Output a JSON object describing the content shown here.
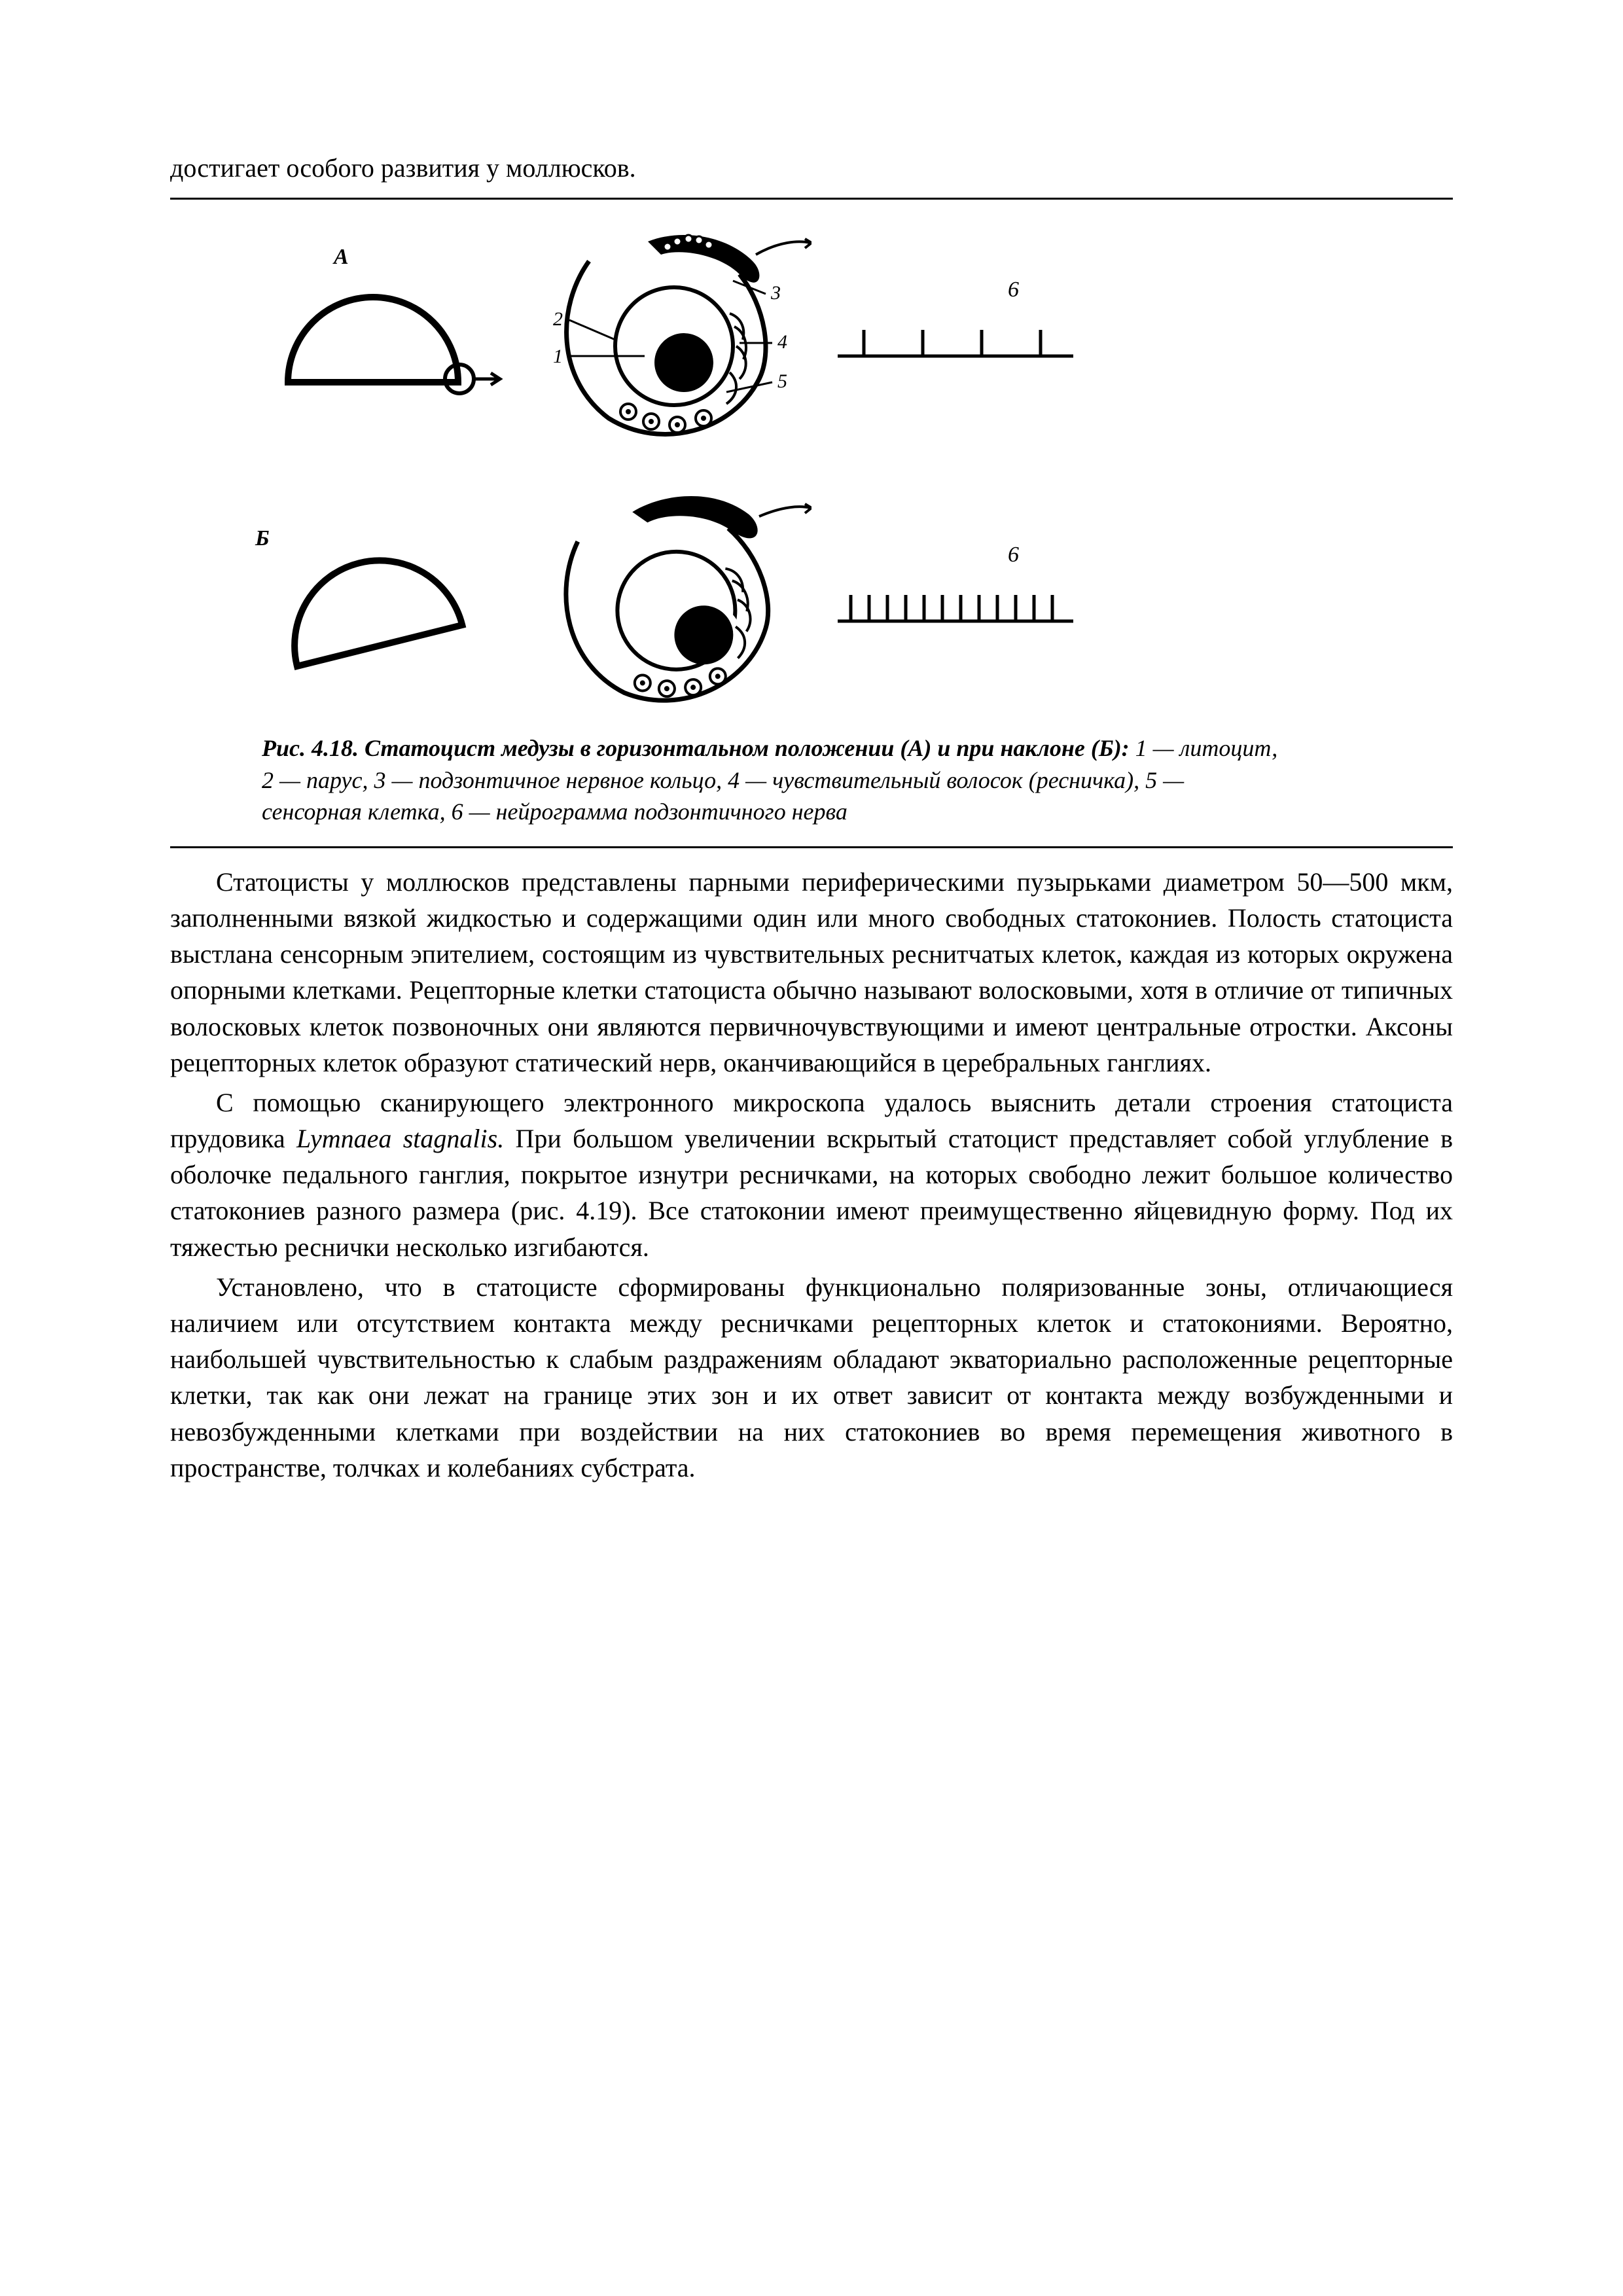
{
  "lead": "достигает особого развития у моллюсков.",
  "figure": {
    "panelA": {
      "label": "А"
    },
    "panelB": {
      "label": "Б"
    },
    "numlabels": [
      "1",
      "2",
      "3",
      "4",
      "5",
      "6"
    ],
    "spike_label": "6",
    "stroke": "#000000",
    "fill_dark": "#000000",
    "bg": "#ffffff",
    "line_width": 6,
    "line_width_heavy": 10
  },
  "caption": {
    "bold": "Рис. 4.18. Статоцист медузы в горизонтальном положении (А) и при наклоне (Б):",
    "rest": " 1 — литоцит, 2 — парус, 3 — подзонтичное нервное кольцо, 4 — чувствительный волосок (ресничка), 5 — сенсорная клетка, 6 — нейрограмма подзонтичного нерва"
  },
  "paras": [
    "Статоцисты у моллюсков представлены парными периферическими пузырьками диаметром 50—500 мкм, заполненными вязкой жидкостью и содержащими один или много свободных статокониев. Полость статоциста выстлана сенсорным эпителием, состоящим из чувствительных реснитчатых клеток, каждая из которых окружена опорными клетками. Рецепторные клетки статоциста обычно называют волосковыми, хотя в отличие от типичных волосковых клеток позвоночных они являются первичночувствующими и имеют центральные отростки. Аксоны рецепторных клеток образуют статический нерв, оканчивающийся в церебральных ганглиях.",
    "С помощью сканирующего электронного микроскопа удалось выяснить детали строения статоциста прудовика <i>Lymnaea stagnalis.</i> При большом увеличении вскрытый статоцист представляет собой углубление в оболочке педального ганглия, покрытое изнутри ресничками, на которых свободно лежит большое количество статокониев разного размера (рис. 4.19). Все статоконии имеют преимущественно яйцевидную форму. Под их тяжестью реснички несколько изгибаются.",
    "Установлено, что в статоцисте сформированы функционально поляризованные зоны, отличающиеся наличием или отсутствием контакта между ресничками рецепторных клеток и статокониями. Вероятно, наибольшей чувствительностью к слабым раздражениям обладают экваториально расположенные рецепторные клетки, так как они лежат на границе этих зон и их ответ зависит от контакта между возбужденными и невозбужденными клетками при воздействии на них статокониев во время перемещения животного в пространстве, толчках и колебаниях субстрата."
  ]
}
